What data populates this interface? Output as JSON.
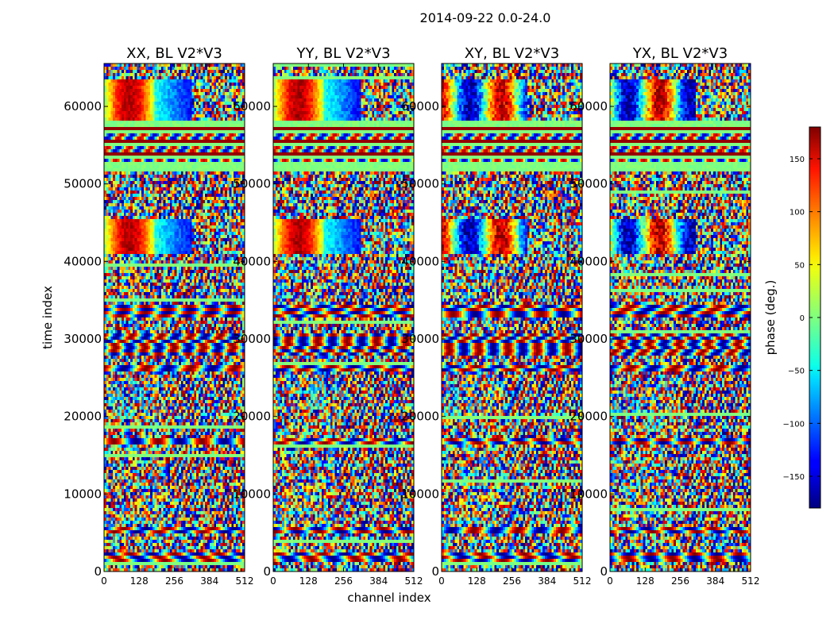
{
  "chart_data": {
    "type": "heatmap",
    "title": "2014-09-22 0.0-24.0",
    "xlabel": "channel index",
    "ylabel": "time index",
    "xlim": [
      0,
      512
    ],
    "ylim": [
      0,
      65536
    ],
    "x_ticks": [
      0,
      128,
      256,
      384,
      512
    ],
    "y_ticks": [
      0,
      10000,
      20000,
      30000,
      40000,
      50000,
      60000
    ],
    "colormap": "jet",
    "colorbar": {
      "label": "phase (deg.)",
      "range": [
        -180,
        180
      ],
      "ticks": [
        -150,
        -100,
        -50,
        0,
        50,
        100,
        150
      ],
      "tick_labels": [
        "−150",
        "−100",
        "−50",
        "0",
        "50",
        "100",
        "150"
      ]
    },
    "panels": [
      {
        "title": "XX, BL V2*V3"
      },
      {
        "title": "YY, BL V2*V3"
      },
      {
        "title": "XY, BL V2*V3"
      },
      {
        "title": "YX, BL V2*V3"
      }
    ],
    "colors": {
      "jet_low": "#00007f",
      "jet_mid": "#7fff7f",
      "jet_high": "#7f0000",
      "flag_band": "#80f080"
    }
  }
}
